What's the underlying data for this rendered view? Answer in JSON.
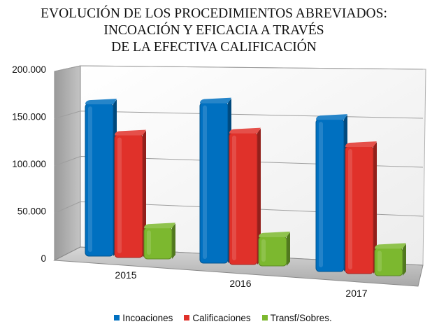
{
  "chart_data": {
    "type": "bar",
    "title": [
      "EVOLUCIÓN DE LOS PROCEDIMIENTOS ABREVIADOS:",
      "INCOACIÓN Y EFICACIA A TRAVÉS",
      "DE LA EFECTIVA CALIFICACIÓN"
    ],
    "categories": [
      "2015",
      "2016",
      "2017"
    ],
    "series": [
      {
        "name": "Incoaciones",
        "color": "#0070C0",
        "values": [
          173000,
          182000,
          173000
        ]
      },
      {
        "name": "Calificaciones",
        "color": "#E0312A",
        "values": [
          140000,
          150000,
          145000
        ]
      },
      {
        "name": "Transf/Sobres.",
        "color": "#7CB82F",
        "values": [
          38000,
          36000,
          34000
        ]
      }
    ],
    "yticks": [
      "200.000",
      "150.000",
      "100.000",
      "50.000",
      "0"
    ],
    "ylim": [
      0,
      200000
    ],
    "grid": true,
    "legend_position": "bottom",
    "three_d": true
  }
}
